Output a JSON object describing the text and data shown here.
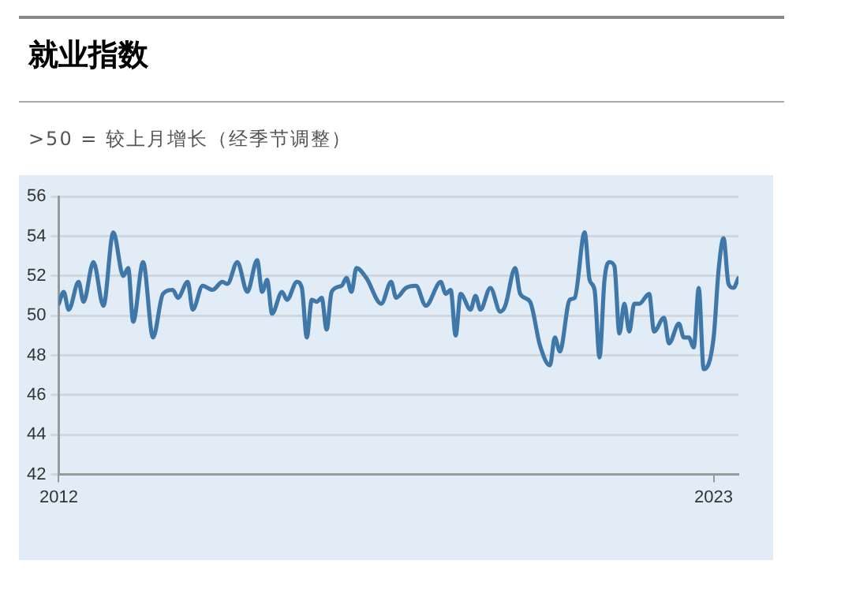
{
  "chart_data": {
    "type": "line",
    "title": "就业指数",
    "subtitle": ">50 =  较上月增长（经季节调整）",
    "x": [
      "2012-01",
      "2012-02",
      "2012-03",
      "2012-05",
      "2012-06",
      "2012-08",
      "2012-10",
      "2012-12",
      "2013-02",
      "2013-03",
      "2013-04",
      "2013-06",
      "2013-08",
      "2013-10",
      "2013-12",
      "2014-01",
      "2014-03",
      "2014-04",
      "2014-06",
      "2014-08",
      "2014-10",
      "2014-11",
      "2015-01",
      "2015-03",
      "2015-05",
      "2015-06",
      "2015-07",
      "2015-08",
      "2015-10",
      "2015-11",
      "2016-01",
      "2016-02",
      "2016-03",
      "2016-04",
      "2016-05",
      "2016-06",
      "2016-07",
      "2016-08",
      "2016-10",
      "2016-11",
      "2016-12",
      "2017-01",
      "2017-03",
      "2017-06",
      "2017-08",
      "2017-09",
      "2017-11",
      "2018-01",
      "2018-03",
      "2018-06",
      "2018-07",
      "2018-08",
      "2018-09",
      "2018-10",
      "2018-12",
      "2019-01",
      "2019-02",
      "2019-04",
      "2019-06",
      "2019-07",
      "2019-09",
      "2019-10",
      "2019-12",
      "2020-02",
      "2020-04",
      "2020-05",
      "2020-06",
      "2020-08",
      "2020-09",
      "2020-11",
      "2020-12",
      "2021-01",
      "2021-02",
      "2021-03",
      "2021-04",
      "2021-05",
      "2021-06",
      "2021-07",
      "2021-08",
      "2021-09",
      "2021-10",
      "2021-12",
      "2022-01",
      "2022-03",
      "2022-04",
      "2022-06",
      "2022-07",
      "2022-08",
      "2022-09",
      "2022-10",
      "2022-11",
      "2023-01",
      "2023-02",
      "2023-03",
      "2023-04",
      "2023-05",
      "2023-06"
    ],
    "series": [
      {
        "color": "#3f77a8",
        "values": [
          50.6,
          51.2,
          50.3,
          51.7,
          50.7,
          52.7,
          50.5,
          54.2,
          52.0,
          52.4,
          49.7,
          52.7,
          48.9,
          51.1,
          51.3,
          50.9,
          51.7,
          50.3,
          51.5,
          51.3,
          51.7,
          51.6,
          52.7,
          51.2,
          52.8,
          51.2,
          51.8,
          50.1,
          51.2,
          50.8,
          51.7,
          51.4,
          48.9,
          50.8,
          50.7,
          50.9,
          49.3,
          51.2,
          51.5,
          51.9,
          51.2,
          52.4,
          51.9,
          50.6,
          51.7,
          50.9,
          51.4,
          51.5,
          50.5,
          51.7,
          51.1,
          51.3,
          49.0,
          51.1,
          50.3,
          51.0,
          50.3,
          51.4,
          50.2,
          50.5,
          52.4,
          51.1,
          50.7,
          48.5,
          47.5,
          48.9,
          48.2,
          50.8,
          50.9,
          54.2,
          51.8,
          51.3,
          47.9,
          51.8,
          52.7,
          52.5,
          49.1,
          50.6,
          49.2,
          50.6,
          50.6,
          51.1,
          49.2,
          49.9,
          48.6,
          49.6,
          48.9,
          48.9,
          48.4,
          51.4,
          47.3,
          48.9,
          52.3,
          53.9,
          51.6,
          51.4,
          51.9
        ]
      }
    ],
    "xlim": [
      "2012-01",
      "2023-06"
    ],
    "xticks": [
      "2012",
      "2023"
    ],
    "ylim": [
      42,
      56
    ],
    "yticks": [
      42,
      44,
      46,
      48,
      50,
      52,
      54,
      56
    ],
    "grid": "y",
    "legend": false,
    "marker": "none",
    "line_style": "solid"
  }
}
